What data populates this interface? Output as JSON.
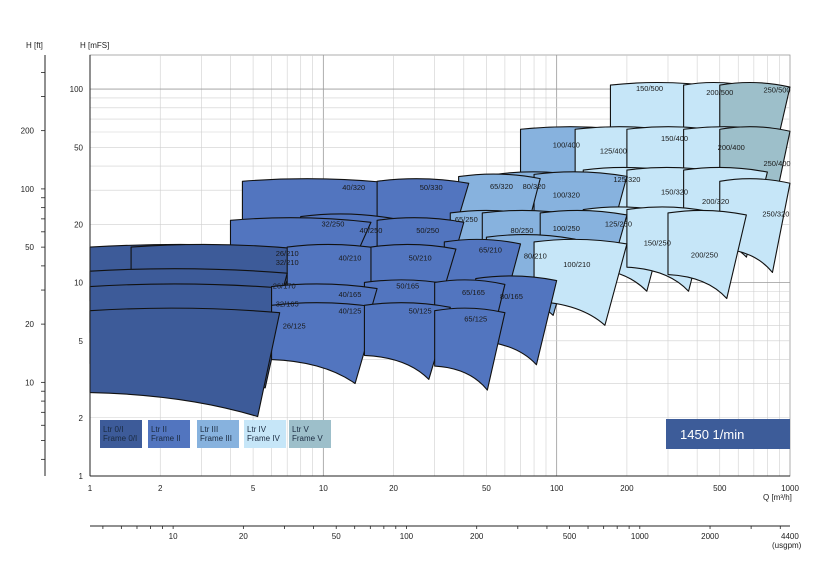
{
  "chart_data": {
    "type": "area",
    "scale": "log-log",
    "xlabel": "Q [m³/h]",
    "ylabel_left_outer": "H [ft]",
    "ylabel_left": "H [mFS]",
    "xlabel_secondary": "(usgpm)",
    "x_ticks": [
      1,
      2,
      5,
      10,
      20,
      50,
      100,
      200,
      500,
      1000
    ],
    "y_ticks": [
      1,
      2,
      5,
      10,
      20,
      50,
      100
    ],
    "ft_ticks": [
      10,
      20,
      50,
      100,
      200
    ],
    "usgpm_ticks": [
      10,
      20,
      50,
      100,
      200,
      500,
      1000,
      2000,
      4400
    ],
    "xlim": [
      1,
      1000
    ],
    "ylim": [
      1,
      150
    ],
    "grid": true,
    "speed_label": "1450 1/min",
    "speed_color": "#3d5c99",
    "legend_position": "bottom-left",
    "frames": [
      {
        "line1": "Ltr 0/I",
        "line2": "Frame 0/I",
        "color": "#3d5b99"
      },
      {
        "line1": "Ltr II",
        "line2": "Frame II",
        "color": "#5275bf"
      },
      {
        "line1": "Ltr III",
        "line2": "Frame III",
        "color": "#87b2de"
      },
      {
        "line1": "Ltr IV",
        "line2": "Frame IV",
        "color": "#c6e6f8"
      },
      {
        "line1": "Ltr V",
        "line2": "Frame V",
        "color": "#9dbfca"
      }
    ],
    "series": [
      {
        "name": "26/125",
        "frame": 0,
        "q": [
          1,
          6.5
        ],
        "h": [
          2.7,
          7.5
        ],
        "lx": 7.5,
        "ly": 5.8
      },
      {
        "name": "32/165",
        "frame": 0,
        "q": [
          1,
          7
        ],
        "h": [
          3.8,
          10
        ],
        "lx": 7.0,
        "ly": 7.5
      },
      {
        "name": "26/170",
        "frame": 0,
        "q": [
          1,
          7
        ],
        "h": [
          5.5,
          12
        ],
        "lx": 6.8,
        "ly": 9.3
      },
      {
        "name": "32/210",
        "frame": 0,
        "q": [
          1,
          8
        ],
        "h": [
          8,
          16
        ],
        "lx": 7.0,
        "ly": 12.3
      },
      {
        "name": "26/210",
        "frame": 0,
        "q": [
          1.5,
          8
        ],
        "h": [
          10,
          16
        ],
        "lx": 7.0,
        "ly": 13.7
      },
      {
        "name": "40/125",
        "frame": 1,
        "q": [
          6,
          17
        ],
        "h": [
          4,
          8
        ],
        "lx": 13,
        "ly": 6.9
      },
      {
        "name": "40/165",
        "frame": 1,
        "q": [
          6,
          17
        ],
        "h": [
          5,
          10
        ],
        "lx": 13,
        "ly": 8.4
      },
      {
        "name": "40/210",
        "frame": 1,
        "q": [
          7,
          18
        ],
        "h": [
          8,
          16
        ],
        "lx": 13,
        "ly": 13
      },
      {
        "name": "40/250",
        "frame": 1,
        "q": [
          8,
          20
        ],
        "h": [
          12,
          23
        ],
        "lx": 16,
        "ly": 18
      },
      {
        "name": "32/250",
        "frame": 1,
        "q": [
          4,
          16
        ],
        "h": [
          14,
          22
        ],
        "lx": 11,
        "ly": 19.5
      },
      {
        "name": "40/320",
        "frame": 1,
        "q": [
          4.5,
          20
        ],
        "h": [
          18,
          35
        ],
        "lx": 13.5,
        "ly": 30
      },
      {
        "name": "50/125",
        "frame": 1,
        "q": [
          15,
          35
        ],
        "h": [
          4.2,
          8
        ],
        "lx": 26,
        "ly": 6.9
      },
      {
        "name": "50/165",
        "frame": 1,
        "q": [
          15,
          35
        ],
        "h": [
          5.5,
          10.5
        ],
        "lx": 23,
        "ly": 9.3
      },
      {
        "name": "50/210",
        "frame": 1,
        "q": [
          16,
          37
        ],
        "h": [
          8.5,
          16
        ],
        "lx": 26,
        "ly": 13
      },
      {
        "name": "50/250",
        "frame": 1,
        "q": [
          17,
          40
        ],
        "h": [
          11,
          22
        ],
        "lx": 28,
        "ly": 18
      },
      {
        "name": "50/330",
        "frame": 1,
        "q": [
          17,
          42
        ],
        "h": [
          18,
          35
        ],
        "lx": 29,
        "ly": 30
      },
      {
        "name": "65/125",
        "frame": 1,
        "q": [
          30,
          60
        ],
        "h": [
          3.7,
          7.5
        ],
        "lx": 45,
        "ly": 6.3
      },
      {
        "name": "65/165",
        "frame": 1,
        "q": [
          30,
          60
        ],
        "h": [
          5.5,
          10.5
        ],
        "lx": 44,
        "ly": 8.6
      },
      {
        "name": "65/210",
        "frame": 1,
        "q": [
          33,
          70
        ],
        "h": [
          9,
          17
        ],
        "lx": 52,
        "ly": 14.3
      },
      {
        "name": "65/250",
        "frame": 2,
        "q": [
          35,
          80
        ],
        "h": [
          12,
          24
        ],
        "lx": 41,
        "ly": 20.5
      },
      {
        "name": "65/320",
        "frame": 2,
        "q": [
          38,
          85
        ],
        "h": [
          18,
          37
        ],
        "lx": 58,
        "ly": 30.5
      },
      {
        "name": "80/165",
        "frame": 1,
        "q": [
          45,
          100
        ],
        "h": [
          5,
          11
        ],
        "lx": 64,
        "ly": 8.2
      },
      {
        "name": "80/210",
        "frame": 2,
        "q": [
          50,
          120
        ],
        "h": [
          9,
          18
        ],
        "lx": 81,
        "ly": 13.3
      },
      {
        "name": "80/250",
        "frame": 2,
        "q": [
          48,
          120
        ],
        "h": [
          12,
          24
        ],
        "lx": 71,
        "ly": 18
      },
      {
        "name": "80/320",
        "frame": 2,
        "q": [
          55,
          130
        ],
        "h": [
          18,
          38
        ],
        "lx": 80,
        "ly": 30.5
      },
      {
        "name": "100/210",
        "frame": 3,
        "q": [
          80,
          200
        ],
        "h": [
          8,
          17
        ],
        "lx": 122,
        "ly": 12
      },
      {
        "name": "100/250",
        "frame": 2,
        "q": [
          85,
          200
        ],
        "h": [
          12,
          24
        ],
        "lx": 110,
        "ly": 18.5
      },
      {
        "name": "100/320",
        "frame": 2,
        "q": [
          80,
          200
        ],
        "h": [
          18,
          38
        ],
        "lx": 110,
        "ly": 27.5
      },
      {
        "name": "100/400",
        "frame": 2,
        "q": [
          70,
          220
        ],
        "h": [
          30,
          65
        ],
        "lx": 110,
        "ly": 50
      },
      {
        "name": "125/250",
        "frame": 3,
        "q": [
          130,
          300
        ],
        "h": [
          12,
          25
        ],
        "lx": 184,
        "ly": 19.5
      },
      {
        "name": "125/320",
        "frame": 3,
        "q": [
          130,
          330
        ],
        "h": [
          18,
          40
        ],
        "lx": 200,
        "ly": 33
      },
      {
        "name": "125/400",
        "frame": 3,
        "q": [
          120,
          330
        ],
        "h": [
          30,
          65
        ],
        "lx": 175,
        "ly": 46.5
      },
      {
        "name": "150/250",
        "frame": 3,
        "q": [
          200,
          450
        ],
        "h": [
          12,
          25
        ],
        "lx": 270,
        "ly": 15.5
      },
      {
        "name": "150/320",
        "frame": 3,
        "q": [
          200,
          500
        ],
        "h": [
          18,
          40
        ],
        "lx": 320,
        "ly": 28.5
      },
      {
        "name": "150/400",
        "frame": 3,
        "q": [
          200,
          520
        ],
        "h": [
          30,
          65
        ],
        "lx": 320,
        "ly": 54
      },
      {
        "name": "150/500",
        "frame": 3,
        "q": [
          170,
          500
        ],
        "h": [
          50,
          110
        ],
        "lx": 250,
        "ly": 98
      },
      {
        "name": "200/250",
        "frame": 3,
        "q": [
          300,
          650
        ],
        "h": [
          11,
          24
        ],
        "lx": 430,
        "ly": 13.5
      },
      {
        "name": "200/320",
        "frame": 3,
        "q": [
          350,
          800
        ],
        "h": [
          18,
          40
        ],
        "lx": 480,
        "ly": 25.5
      },
      {
        "name": "200/400",
        "frame": 3,
        "q": [
          350,
          900
        ],
        "h": [
          30,
          65
        ],
        "lx": 560,
        "ly": 48.5
      },
      {
        "name": "200/500",
        "frame": 3,
        "q": [
          350,
          700
        ],
        "h": [
          50,
          110
        ],
        "lx": 500,
        "ly": 93
      },
      {
        "name": "250/320",
        "frame": 3,
        "q": [
          500,
          1000
        ],
        "h": [
          15,
          35
        ],
        "lx": 870,
        "ly": 22
      },
      {
        "name": "250/400",
        "frame": 4,
        "q": [
          500,
          1000
        ],
        "h": [
          30,
          65
        ],
        "lx": 880,
        "ly": 40
      },
      {
        "name": "250/500",
        "frame": 4,
        "q": [
          500,
          1000
        ],
        "h": [
          55,
          110
        ],
        "lx": 880,
        "ly": 96
      }
    ]
  }
}
